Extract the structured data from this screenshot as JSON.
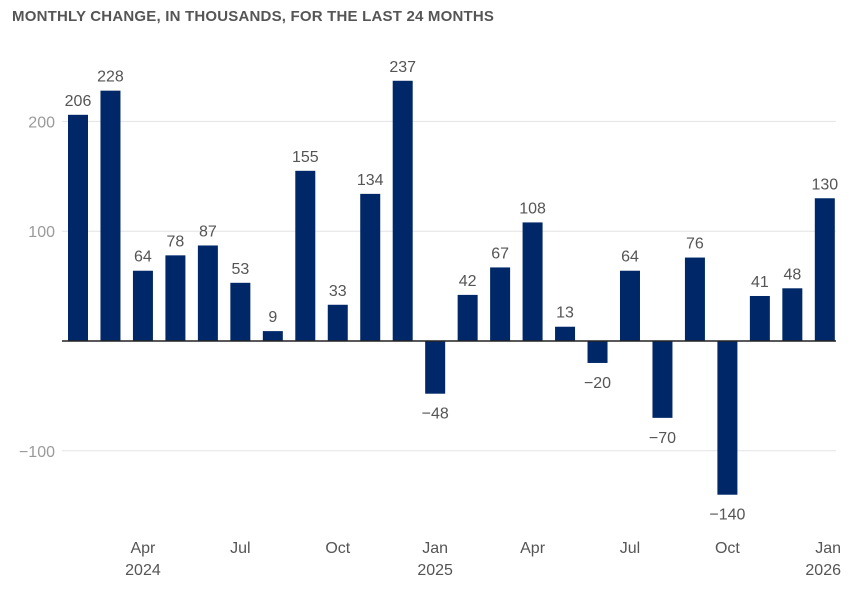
{
  "chart_data": {
    "type": "bar",
    "title": "MONTHLY CHANGE, IN THOUSANDS, FOR THE LAST 24 MONTHS",
    "xlabel": "",
    "ylabel": "",
    "categories": [
      "Feb 2024",
      "Mar 2024",
      "Apr 2024",
      "May 2024",
      "Jun 2024",
      "Jul 2024",
      "Aug 2024",
      "Sep 2024",
      "Oct 2024",
      "Nov 2024",
      "Dec 2024",
      "Jan 2025",
      "Feb 2025",
      "Mar 2025",
      "Apr 2025",
      "May 2025",
      "Jun 2025",
      "Jul 2025",
      "Aug 2025",
      "Sep 2025",
      "Oct 2025",
      "Nov 2025",
      "Dec 2025",
      "Jan 2026"
    ],
    "values": [
      206,
      228,
      64,
      78,
      87,
      53,
      9,
      155,
      33,
      134,
      237,
      -48,
      42,
      67,
      108,
      13,
      -20,
      64,
      -70,
      76,
      -140,
      41,
      48,
      130
    ],
    "data_labels": [
      "206",
      "228",
      "64",
      "78",
      "87",
      "53",
      "9",
      "155",
      "33",
      "134",
      "237",
      "−48",
      "42",
      "67",
      "108",
      "13",
      "−20",
      "64",
      "−70",
      "76",
      "−140",
      "41",
      "48",
      "130"
    ],
    "yticks": [
      {
        "value": 200,
        "label": "200"
      },
      {
        "value": 100,
        "label": "100"
      },
      {
        "value": -100,
        "label": "−100"
      }
    ],
    "xticks": [
      {
        "index": 2,
        "lines": [
          "Apr",
          "2024"
        ]
      },
      {
        "index": 5,
        "lines": [
          "Jul"
        ]
      },
      {
        "index": 8,
        "lines": [
          "Oct"
        ]
      },
      {
        "index": 11,
        "lines": [
          "Jan",
          "2025"
        ]
      },
      {
        "index": 14,
        "lines": [
          "Apr"
        ]
      },
      {
        "index": 17,
        "lines": [
          "Jul"
        ]
      },
      {
        "index": 20,
        "lines": [
          "Oct"
        ]
      },
      {
        "index": 23,
        "lines": [
          "Jan",
          "2026"
        ]
      }
    ],
    "ylim": [
      -160,
      250
    ],
    "grid": true,
    "bar_color": "#002868",
    "grid_color": "#e3e3e3",
    "zero_line_color": "#222222"
  }
}
